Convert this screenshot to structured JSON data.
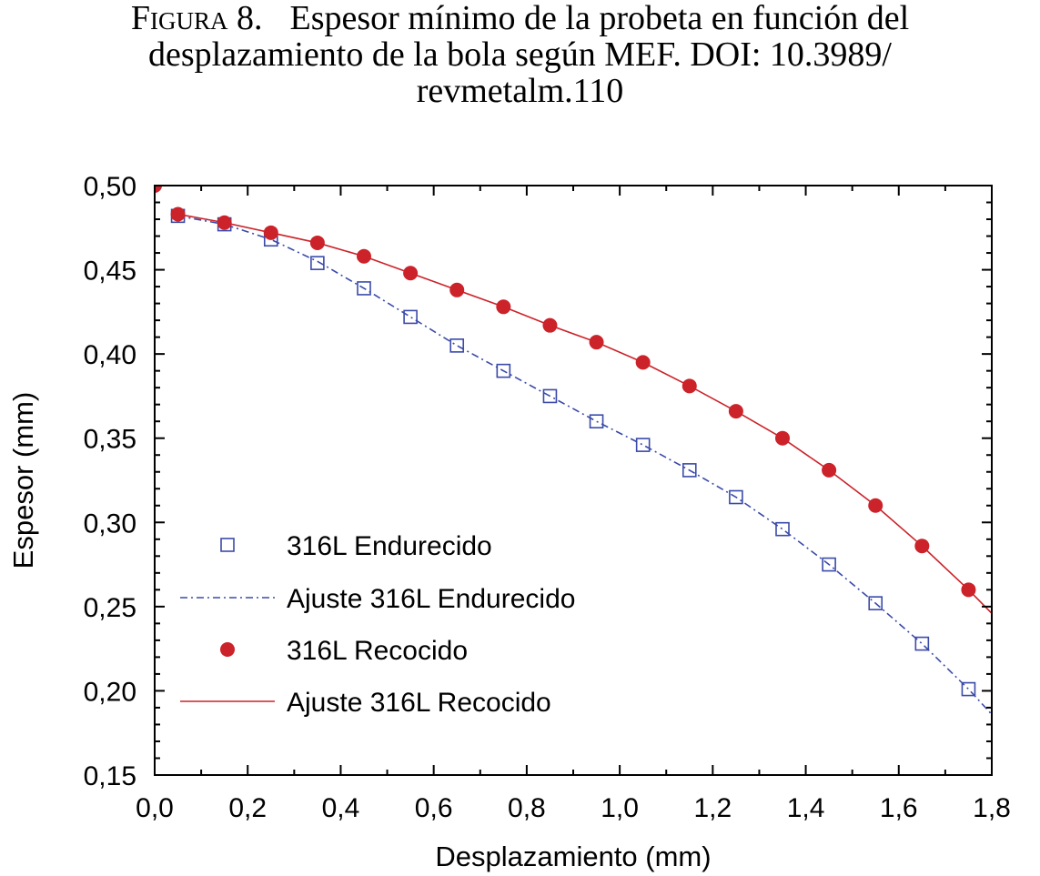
{
  "caption": {
    "label": "Figura 8.",
    "line1": "Espesor mínimo de la probeta en función del",
    "line2": "desplazamiento de la bola según MEF. DOI: 10.3989/",
    "line3": "revmetalm.110"
  },
  "chart_data": {
    "type": "scatter",
    "xlabel": "Desplazamiento (mm)",
    "ylabel": "Espesor (mm)",
    "xlim": [
      0.0,
      1.8
    ],
    "ylim": [
      0.15,
      0.5
    ],
    "x_ticks": [
      0.0,
      0.2,
      0.4,
      0.6,
      0.8,
      1.0,
      1.2,
      1.4,
      1.6,
      1.8
    ],
    "x_tick_labels": [
      "0,0",
      "0,2",
      "0,4",
      "0,6",
      "0,8",
      "1,0",
      "1,2",
      "1,4",
      "1,6",
      "1,8"
    ],
    "y_ticks": [
      0.15,
      0.2,
      0.25,
      0.3,
      0.35,
      0.4,
      0.45,
      0.5
    ],
    "y_tick_labels": [
      "0,15",
      "0,20",
      "0,25",
      "0,30",
      "0,35",
      "0,40",
      "0,45",
      "0,50"
    ],
    "grid": false,
    "legend_position": "lower-left",
    "series": [
      {
        "name": "316L Endurecido",
        "kind": "markers",
        "marker": "open-square",
        "color": "#3a4aa8",
        "x": [
          0.05,
          0.15,
          0.25,
          0.35,
          0.45,
          0.55,
          0.65,
          0.75,
          0.85,
          0.95,
          1.05,
          1.15,
          1.25,
          1.35,
          1.45,
          1.55,
          1.65,
          1.75
        ],
        "y": [
          0.482,
          0.477,
          0.468,
          0.454,
          0.439,
          0.422,
          0.405,
          0.39,
          0.375,
          0.36,
          0.346,
          0.331,
          0.315,
          0.296,
          0.275,
          0.252,
          0.228,
          0.201
        ]
      },
      {
        "name": "Ajuste 316L Endurecido",
        "kind": "line",
        "style": "dash-dot",
        "color": "#3a4aa8",
        "x": [
          0.05,
          0.15,
          0.25,
          0.35,
          0.45,
          0.55,
          0.65,
          0.75,
          0.85,
          0.95,
          1.05,
          1.15,
          1.25,
          1.35,
          1.45,
          1.55,
          1.65,
          1.75,
          1.8
        ],
        "y": [
          0.482,
          0.477,
          0.468,
          0.455,
          0.439,
          0.422,
          0.405,
          0.39,
          0.375,
          0.36,
          0.346,
          0.331,
          0.315,
          0.296,
          0.275,
          0.252,
          0.228,
          0.201,
          0.186
        ]
      },
      {
        "name": "316L Recocido",
        "kind": "markers",
        "marker": "filled-circle",
        "color": "#cc2229",
        "x": [
          0.0,
          0.05,
          0.15,
          0.25,
          0.35,
          0.45,
          0.55,
          0.65,
          0.75,
          0.85,
          0.95,
          1.05,
          1.15,
          1.25,
          1.35,
          1.45,
          1.55,
          1.65,
          1.75
        ],
        "y": [
          0.5,
          0.483,
          0.478,
          0.472,
          0.466,
          0.458,
          0.448,
          0.438,
          0.428,
          0.417,
          0.407,
          0.395,
          0.381,
          0.366,
          0.35,
          0.331,
          0.31,
          0.286,
          0.26
        ]
      },
      {
        "name": "Ajuste 316L Recocido",
        "kind": "line",
        "style": "solid",
        "color": "#cc2229",
        "x": [
          0.05,
          0.15,
          0.25,
          0.35,
          0.45,
          0.55,
          0.65,
          0.75,
          0.85,
          0.95,
          1.05,
          1.15,
          1.25,
          1.35,
          1.45,
          1.55,
          1.65,
          1.75,
          1.8
        ],
        "y": [
          0.483,
          0.478,
          0.472,
          0.466,
          0.458,
          0.448,
          0.438,
          0.428,
          0.417,
          0.407,
          0.395,
          0.381,
          0.366,
          0.35,
          0.331,
          0.31,
          0.286,
          0.26,
          0.246
        ]
      }
    ]
  }
}
